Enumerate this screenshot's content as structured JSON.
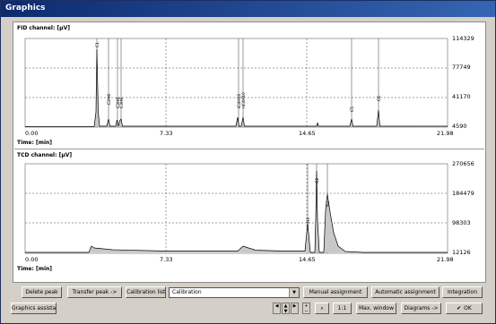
{
  "window": {
    "title": "Graphics"
  },
  "fid": {
    "channel_label": "FID channel: [µV]",
    "y_ticks": [
      "114329",
      "77749",
      "41170",
      "4590"
    ],
    "x_ticks": [
      "0.00",
      "7.33",
      "14.65",
      "21.98"
    ],
    "time_label": "Time: [min]",
    "peak_labels": [
      "C1",
      "C2H6",
      "C3H8",
      "C3H6",
      "iC4H10",
      "nC4H10",
      "C5",
      "C6"
    ]
  },
  "tcd": {
    "channel_label": "TCD channel: [µV]",
    "y_ticks": [
      "270656",
      "184479",
      "98303",
      "12126"
    ],
    "x_ticks": [
      "0.00",
      "7.33",
      "14.65",
      "21.98"
    ],
    "time_label": "Time: [min]",
    "peak_labels": [
      "H2",
      "O2",
      "N2"
    ]
  },
  "toolbar": {
    "delete_peak": "Delete peak",
    "transfer_peak": "Transfer peak ->",
    "calibration_list": "Calibration list ...",
    "calibration_select": "Calibration",
    "manual_assignment": "Manual assignment",
    "automatic_assignment": "Automatic assignment",
    "integration": "Integration",
    "graphics_assistant": "Graphics assistant",
    "zoom_1to1": "1:1",
    "max_window": "Max. window",
    "diagrams": "Diagrams ->",
    "ok": "OK"
  }
}
